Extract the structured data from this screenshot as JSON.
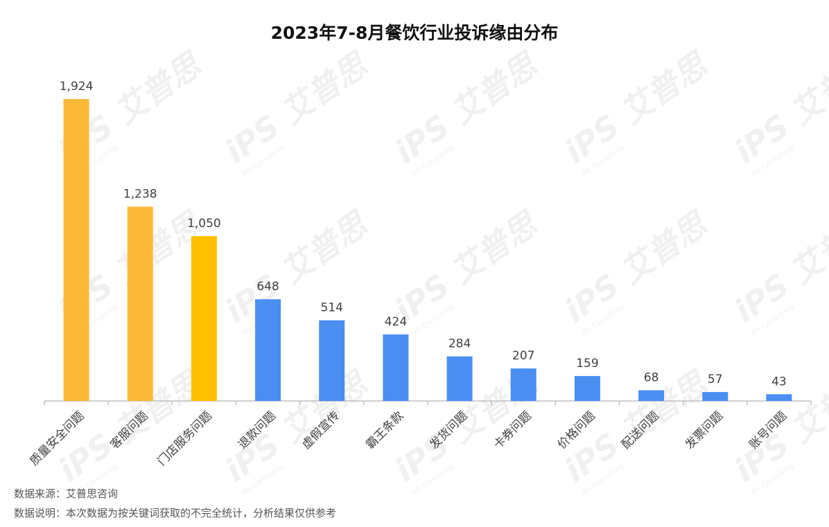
{
  "watermark": {
    "logo": "iPS",
    "brand": "艾普思",
    "sub": "IPS Consulting"
  },
  "footnotes": {
    "source": "数据来源：艾普思咨询",
    "note": "数据说明：本次数据为按关键词获取的不完全统计，分析结果仅供参考"
  },
  "colors": {
    "orange": "#FBB93A",
    "gold": "#FFC000",
    "blue": "#4A8EF2",
    "axis": "#BFBFBF"
  },
  "chart_data": {
    "type": "bar",
    "title": "2023年7-8月餐饮行业投诉缘由分布",
    "categories": [
      "质量安全问题",
      "客服问题",
      "门店服务问题",
      "退款问题",
      "虚假宣传",
      "霸王条款",
      "发货问题",
      "卡券问题",
      "价格问题",
      "配送问题",
      "发票问题",
      "账号问题"
    ],
    "values": [
      1924,
      1238,
      1050,
      648,
      514,
      424,
      284,
      207,
      159,
      68,
      57,
      43
    ],
    "value_labels": [
      "1,924",
      "1,238",
      "1,050",
      "648",
      "514",
      "424",
      "284",
      "207",
      "159",
      "68",
      "57",
      "43"
    ],
    "bar_colors": [
      "#FBB93A",
      "#FBB93A",
      "#FFC000",
      "#4A8EF2",
      "#4A8EF2",
      "#4A8EF2",
      "#4A8EF2",
      "#4A8EF2",
      "#4A8EF2",
      "#4A8EF2",
      "#4A8EF2",
      "#4A8EF2"
    ],
    "ylim": [
      0,
      1924
    ],
    "xlabel": "",
    "ylabel": "",
    "grid": false,
    "legend": "none"
  }
}
